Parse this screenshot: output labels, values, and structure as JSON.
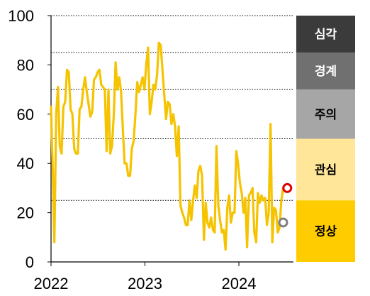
{
  "chart_data": {
    "type": "line",
    "title": "",
    "xlabel": "",
    "ylabel": "",
    "ylim": [
      0,
      100
    ],
    "xlim": [
      "2022-01-01",
      "2024-07-31"
    ],
    "y_ticks": [
      0,
      20,
      40,
      60,
      80,
      100
    ],
    "x_ticks": [
      {
        "date": "2022-01-01",
        "label": "2022"
      },
      {
        "date": "2023-01-01",
        "label": "2023"
      },
      {
        "date": "2024-01-01",
        "label": "2024"
      }
    ],
    "threshold_lines": [
      25,
      50,
      70,
      85,
      100
    ],
    "bands": [
      {
        "label": "심각",
        "from": 85,
        "to": 100,
        "color": "#3b3b3b",
        "text_color": "#ffffff"
      },
      {
        "label": "경계",
        "from": 70,
        "to": 85,
        "color": "#707070",
        "text_color": "#ffffff"
      },
      {
        "label": "주의",
        "from": 50,
        "to": 70,
        "color": "#a6a6a6",
        "text_color": "#000000"
      },
      {
        "label": "관심",
        "from": 25,
        "to": 50,
        "color": "#ffe699",
        "text_color": "#000000"
      },
      {
        "label": "정상",
        "from": 0,
        "to": 25,
        "color": "#ffcc00",
        "text_color": "#000000"
      }
    ],
    "series": [
      {
        "color": "#f5c300",
        "points": [
          [
            "2022-01-01",
            63
          ],
          [
            "2022-01-08",
            36
          ],
          [
            "2022-01-14",
            8
          ],
          [
            "2022-01-21",
            60
          ],
          [
            "2022-01-28",
            71
          ],
          [
            "2022-02-04",
            47
          ],
          [
            "2022-02-11",
            44
          ],
          [
            "2022-02-18",
            63
          ],
          [
            "2022-02-25",
            65
          ],
          [
            "2022-03-04",
            78
          ],
          [
            "2022-03-11",
            77
          ],
          [
            "2022-03-18",
            62
          ],
          [
            "2022-03-25",
            60
          ],
          [
            "2022-04-01",
            46
          ],
          [
            "2022-04-08",
            44
          ],
          [
            "2022-04-15",
            44
          ],
          [
            "2022-04-22",
            62
          ],
          [
            "2022-04-29",
            63
          ],
          [
            "2022-05-06",
            70
          ],
          [
            "2022-05-13",
            75
          ],
          [
            "2022-05-20",
            69
          ],
          [
            "2022-05-27",
            64
          ],
          [
            "2022-06-03",
            59
          ],
          [
            "2022-06-10",
            61
          ],
          [
            "2022-06-17",
            74
          ],
          [
            "2022-06-24",
            75
          ],
          [
            "2022-07-01",
            77
          ],
          [
            "2022-07-08",
            78
          ],
          [
            "2022-07-15",
            72
          ],
          [
            "2022-07-22",
            71
          ],
          [
            "2022-07-29",
            70
          ],
          [
            "2022-08-05",
            45
          ],
          [
            "2022-08-12",
            70
          ],
          [
            "2022-08-19",
            44
          ],
          [
            "2022-08-26",
            47
          ],
          [
            "2022-09-02",
            60
          ],
          [
            "2022-09-09",
            81
          ],
          [
            "2022-09-16",
            70
          ],
          [
            "2022-09-23",
            75
          ],
          [
            "2022-09-30",
            69
          ],
          [
            "2022-10-07",
            54
          ],
          [
            "2022-10-14",
            40
          ],
          [
            "2022-10-21",
            40
          ],
          [
            "2022-10-28",
            35
          ],
          [
            "2022-11-04",
            35
          ],
          [
            "2022-11-11",
            46
          ],
          [
            "2022-11-18",
            49
          ],
          [
            "2022-11-25",
            60
          ],
          [
            "2022-12-02",
            73
          ],
          [
            "2022-12-09",
            69
          ],
          [
            "2022-12-16",
            72
          ],
          [
            "2022-12-23",
            75
          ],
          [
            "2022-12-30",
            70
          ],
          [
            "2023-01-06",
            80
          ],
          [
            "2023-01-13",
            87
          ],
          [
            "2023-01-20",
            60
          ],
          [
            "2023-01-27",
            65
          ],
          [
            "2023-02-03",
            72
          ],
          [
            "2023-02-10",
            70
          ],
          [
            "2023-02-17",
            76
          ],
          [
            "2023-02-24",
            89
          ],
          [
            "2023-03-03",
            88
          ],
          [
            "2023-03-10",
            78
          ],
          [
            "2023-03-17",
            68
          ],
          [
            "2023-03-24",
            58
          ],
          [
            "2023-03-31",
            65
          ],
          [
            "2023-04-07",
            64
          ],
          [
            "2023-04-14",
            56
          ],
          [
            "2023-04-21",
            60
          ],
          [
            "2023-04-28",
            55
          ],
          [
            "2023-05-05",
            43
          ],
          [
            "2023-05-12",
            55
          ],
          [
            "2023-05-19",
            23
          ],
          [
            "2023-05-26",
            20
          ],
          [
            "2023-06-02",
            18
          ],
          [
            "2023-06-09",
            15
          ],
          [
            "2023-06-16",
            15
          ],
          [
            "2023-06-23",
            25
          ],
          [
            "2023-06-30",
            17
          ],
          [
            "2023-07-07",
            25
          ],
          [
            "2023-07-14",
            31
          ],
          [
            "2023-07-21",
            26
          ],
          [
            "2023-07-28",
            37
          ],
          [
            "2023-08-04",
            39
          ],
          [
            "2023-08-11",
            35
          ],
          [
            "2023-08-18",
            9
          ],
          [
            "2023-08-25",
            24
          ],
          [
            "2023-09-01",
            16
          ],
          [
            "2023-09-08",
            14
          ],
          [
            "2023-09-15",
            18
          ],
          [
            "2023-09-22",
            13
          ],
          [
            "2023-09-29",
            12
          ],
          [
            "2023-10-06",
            47
          ],
          [
            "2023-10-13",
            23
          ],
          [
            "2023-10-20",
            17
          ],
          [
            "2023-10-27",
            12
          ],
          [
            "2023-11-03",
            13
          ],
          [
            "2023-11-10",
            5
          ],
          [
            "2023-11-17",
            22
          ],
          [
            "2023-11-24",
            27
          ],
          [
            "2023-12-01",
            16
          ],
          [
            "2023-12-08",
            20
          ],
          [
            "2023-12-15",
            20
          ],
          [
            "2023-12-22",
            45
          ],
          [
            "2023-12-29",
            40
          ],
          [
            "2024-01-05",
            32
          ],
          [
            "2024-01-12",
            28
          ],
          [
            "2024-01-19",
            20
          ],
          [
            "2024-01-26",
            26
          ],
          [
            "2024-02-02",
            6
          ],
          [
            "2024-02-09",
            27
          ],
          [
            "2024-02-16",
            28
          ],
          [
            "2024-02-23",
            30
          ],
          [
            "2024-03-01",
            12
          ],
          [
            "2024-03-08",
            8
          ],
          [
            "2024-03-15",
            28
          ],
          [
            "2024-03-22",
            24
          ],
          [
            "2024-03-29",
            27
          ],
          [
            "2024-04-05",
            25
          ],
          [
            "2024-04-12",
            26
          ],
          [
            "2024-04-19",
            15
          ],
          [
            "2024-04-26",
            20
          ],
          [
            "2024-05-03",
            56
          ],
          [
            "2024-05-10",
            8
          ],
          [
            "2024-05-17",
            22
          ],
          [
            "2024-05-24",
            21
          ],
          [
            "2024-05-31",
            12
          ],
          [
            "2024-06-07",
            14
          ],
          [
            "2024-06-14",
            25
          ],
          [
            "2024-06-21",
            30
          ]
        ]
      }
    ],
    "markers": [
      {
        "date": "2024-07-07",
        "value": 30,
        "style": "hollow-circle",
        "color": "#e00000"
      },
      {
        "date": "2024-06-21",
        "value": 16,
        "style": "hollow-circle",
        "color": "#7f7f7f"
      }
    ]
  }
}
